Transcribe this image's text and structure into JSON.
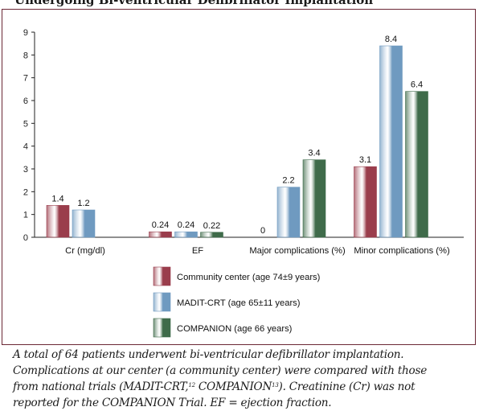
{
  "page": {
    "title": "Undergoing Bi-ventricular Defibrillator Implantation",
    "caption": {
      "line1": "A total of 64 patients underwent bi-ventricular defibrillator implantation.",
      "line2": "Complications at our center (a community center) were compared with those",
      "line3_a": "from national trials (MADIT-CRT,",
      "ref_madit": "12",
      "line3_b": " COMPANION",
      "ref_companion": "13",
      "line3_c": "). Creatinine (Cr) was not",
      "line4": "reported for the COMPANION Trial. EF = ejection fraction."
    }
  },
  "colors": {
    "frame": "#6b2735",
    "axis": "#222222",
    "community": "#9a3d4c",
    "madit": "#6f9ac0",
    "companion": "#3f6b4a"
  },
  "chart_data": {
    "type": "bar",
    "categories": [
      "Cr (mg/dl)",
      "EF",
      "Major complications (%)",
      "Minor complications (%)"
    ],
    "series": [
      {
        "name": "Community center (age 74±9 years)",
        "values": [
          1.4,
          0.24,
          0,
          3.1
        ],
        "labels": [
          "1.4",
          "0.24",
          "0",
          "3.1"
        ],
        "color": "#9a3d4c"
      },
      {
        "name": "MADIT-CRT (age 65±11 years)",
        "values": [
          1.2,
          0.24,
          2.2,
          8.4
        ],
        "labels": [
          "1.2",
          "0.24",
          "2.2",
          "8.4"
        ],
        "color": "#6f9ac0"
      },
      {
        "name": "COMPANION (age 66 years)",
        "values": [
          null,
          0.22,
          3.4,
          6.4
        ],
        "labels": [
          "",
          "0.22",
          "3.4",
          "6.4"
        ],
        "color": "#3f6b4a"
      }
    ],
    "ylim": [
      0,
      9
    ],
    "yticks": [
      "0",
      "1",
      "2",
      "3",
      "4",
      "5",
      "6",
      "7",
      "8",
      "9"
    ],
    "xlabel": "",
    "ylabel": "",
    "grid": false,
    "legend": "bottom"
  }
}
